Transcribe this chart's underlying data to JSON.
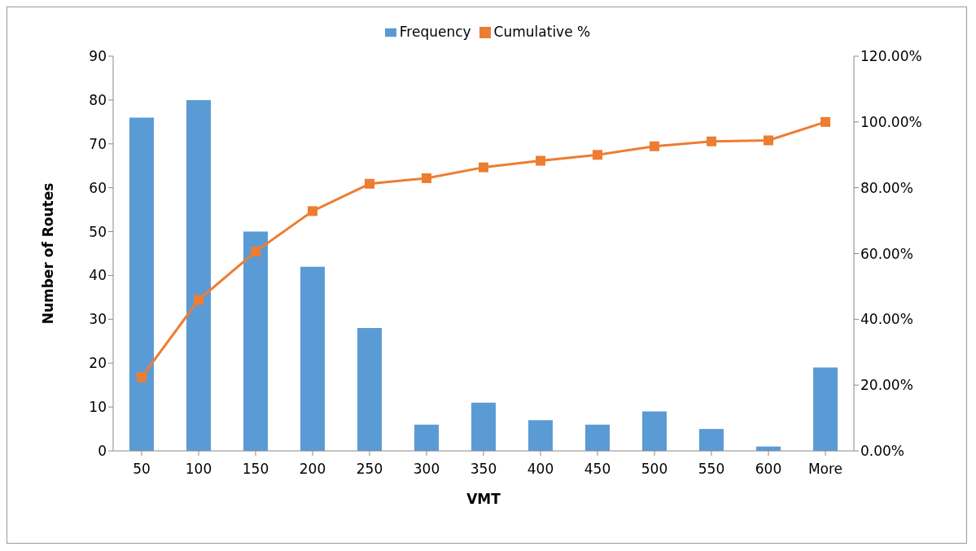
{
  "chart_data": {
    "type": "bar",
    "xlabel": "VMT",
    "ylabel": "Number of Routes",
    "categories": [
      "50",
      "100",
      "150",
      "200",
      "250",
      "300",
      "350",
      "400",
      "450",
      "500",
      "550",
      "600",
      "More"
    ],
    "series": [
      {
        "name": "Frequency",
        "color": "#5b9bd5",
        "values": [
          76,
          80,
          50,
          42,
          28,
          6,
          11,
          7,
          6,
          9,
          5,
          1,
          19
        ]
      },
      {
        "name": "Cumulative %",
        "type": "line",
        "axis": "y2",
        "color": "#ed7d31",
        "marker": "square",
        "values": [
          22.4,
          45.9,
          60.6,
          72.9,
          81.2,
          82.9,
          86.2,
          88.2,
          90.0,
          92.6,
          94.1,
          94.4,
          100
        ]
      }
    ],
    "ylim": [
      0,
      90
    ],
    "yticks": [
      0,
      10,
      20,
      30,
      40,
      50,
      60,
      70,
      80,
      90
    ],
    "y2lim": [
      0,
      120
    ],
    "y2ticks": [
      {
        "value": 0,
        "label": "0.00%"
      },
      {
        "value": 20,
        "label": "20.00%"
      },
      {
        "value": 40,
        "label": "40.00%"
      },
      {
        "value": 60,
        "label": "60.00%"
      },
      {
        "value": 80,
        "label": "80.00%"
      },
      {
        "value": 100,
        "label": "100.00%"
      },
      {
        "value": 120,
        "label": "120.00%"
      }
    ],
    "grid": false,
    "legend": "top"
  }
}
